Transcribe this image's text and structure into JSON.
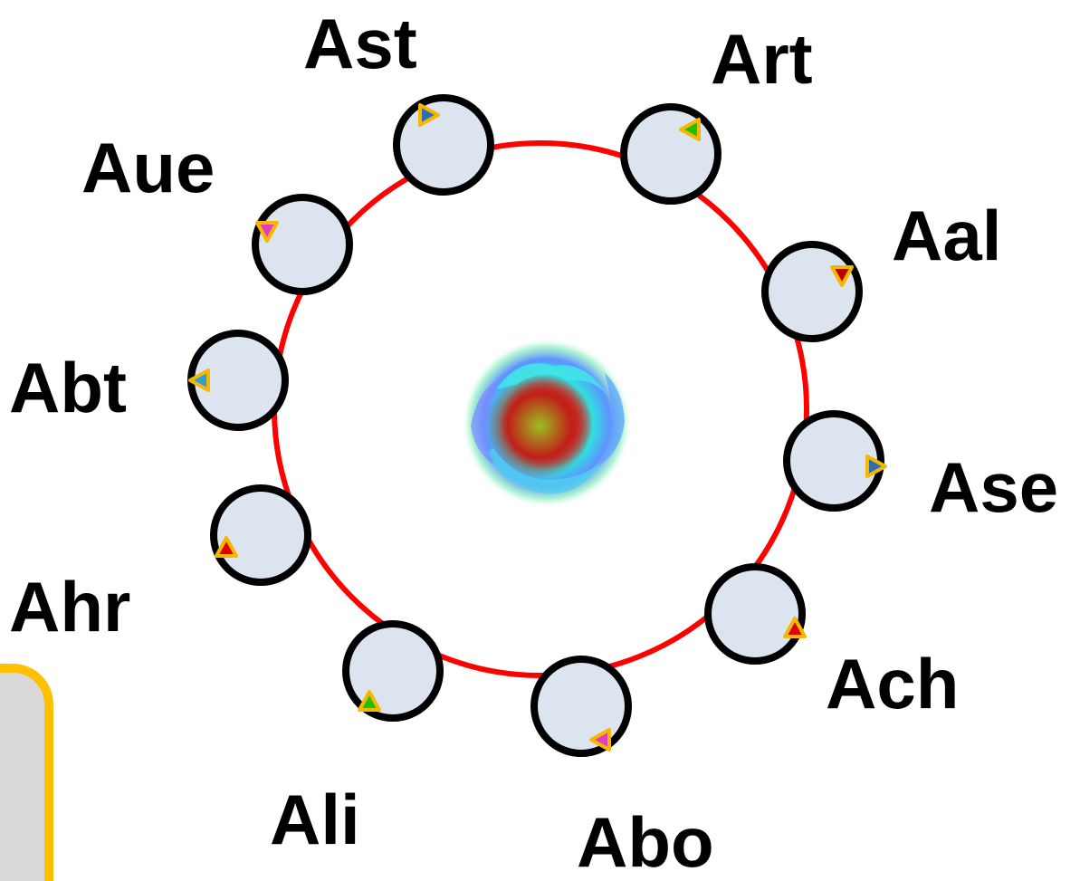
{
  "colors": {
    "ring": "#ff0000",
    "node_fill": "#dce4f0",
    "node_stroke": "#000000",
    "marker_outline": "#f5b800",
    "panel_fill": "#d9d9d9",
    "panel_stroke": "#ffc000"
  },
  "center": {
    "icon": "flower-image"
  },
  "nodes": [
    {
      "label": "Ast",
      "marker_color": "#2e6db0"
    },
    {
      "label": "Art",
      "marker_color": "#22c000"
    },
    {
      "label": "Aal",
      "marker_color": "#c00000"
    },
    {
      "label": "Ase",
      "marker_color": "#2e6db0"
    },
    {
      "label": "Ach",
      "marker_color": "#e00000"
    },
    {
      "label": "Abo",
      "marker_color": "#e040c0"
    },
    {
      "label": "Ali",
      "marker_color": "#22c000"
    },
    {
      "label": "Ahr",
      "marker_color": "#e00000"
    },
    {
      "label": "Abt",
      "marker_color": "#2e9fd8"
    },
    {
      "label": "Aue",
      "marker_color": "#e040c0"
    }
  ]
}
